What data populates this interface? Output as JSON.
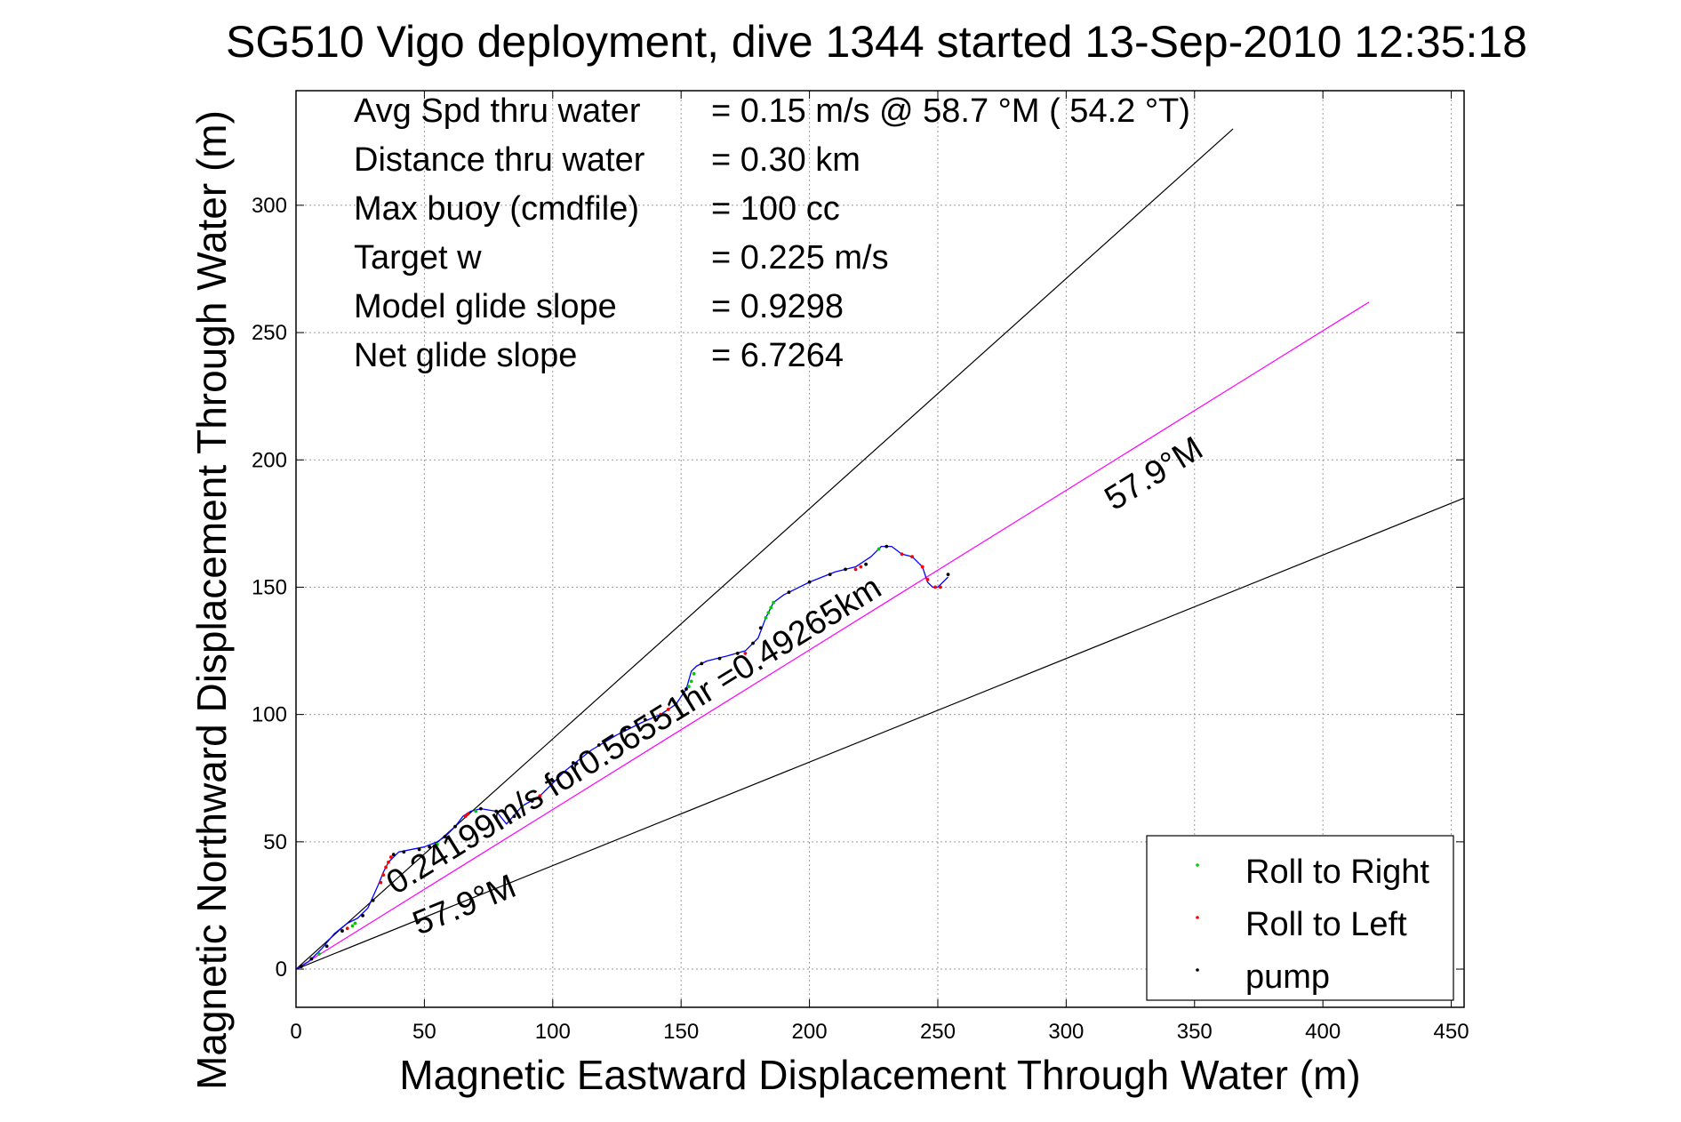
{
  "chart_data": {
    "type": "scatter",
    "title": "SG510 Vigo deployment, dive 1344 started 13-Sep-2010 12:35:18",
    "xlabel": "Magnetic Eastward Displacement Through Water (m)",
    "ylabel": "Magnetic Northward Displacement Through Water (m)",
    "xlim": [
      0,
      455
    ],
    "ylim": [
      -15,
      345
    ],
    "xticks": [
      0,
      50,
      100,
      150,
      200,
      250,
      300,
      350,
      400,
      450
    ],
    "yticks": [
      0,
      50,
      100,
      150,
      200,
      250,
      300
    ],
    "grid": true,
    "legend_position": "bottom-right",
    "stats": [
      {
        "label": "Avg Spd thru water",
        "value": "=  0.15 m/s @  58.7 °M ( 54.2 °T)"
      },
      {
        "label": "Distance thru water",
        "value": "=  0.30 km"
      },
      {
        "label": "Max buoy (cmdfile)",
        "value": "= 100 cc"
      },
      {
        "label": "Target w",
        "value": "= 0.225 m/s"
      },
      {
        "label": "Model glide slope",
        "value": "= 0.9298"
      },
      {
        "label": "Net glide slope",
        "value": "= 6.7264"
      }
    ],
    "annotations": {
      "speed": "0.24199m/s for0.56551hr =0.49265km",
      "heading_upper": "57.9°M",
      "heading_lower": "57.9°M"
    },
    "guide_lines": [
      {
        "name": "upper-bound",
        "x": [
          0,
          365
        ],
        "y": [
          0,
          330
        ],
        "color": "#000000"
      },
      {
        "name": "lower-bound",
        "x": [
          0,
          455
        ],
        "y": [
          0,
          185
        ],
        "color": "#000000"
      },
      {
        "name": "mean-heading",
        "x": [
          0,
          418
        ],
        "y": [
          0,
          262
        ],
        "color": "#ff00ff"
      }
    ],
    "track": {
      "x": [
        0,
        5,
        10,
        15,
        20,
        24,
        28,
        32,
        34,
        36,
        38,
        40,
        45,
        50,
        55,
        58,
        62,
        65,
        68,
        72,
        78,
        82,
        88,
        95,
        105,
        115,
        125,
        135,
        142,
        148,
        152,
        154,
        156,
        160,
        168,
        175,
        180,
        183,
        186,
        190,
        200,
        210,
        218,
        224,
        228,
        232,
        236,
        240,
        244,
        246,
        248,
        250,
        252,
        254
      ],
      "y": [
        0,
        3,
        8,
        14,
        18,
        20,
        24,
        33,
        38,
        42,
        44,
        46,
        47,
        48,
        50,
        52,
        56,
        60,
        62,
        63,
        62,
        57,
        64,
        68,
        78,
        86,
        92,
        97,
        100,
        104,
        110,
        117,
        119,
        121,
        123,
        125,
        130,
        138,
        144,
        147,
        152,
        156,
        158,
        162,
        166,
        166,
        163,
        162,
        158,
        152,
        150,
        150,
        152,
        154
      ],
      "color": "#0000ff"
    },
    "series": [
      {
        "name": "Roll to Right",
        "color": "#00cc00",
        "x": [
          9,
          22,
          23,
          55,
          70,
          88,
          153,
          154,
          155,
          183,
          184,
          185,
          186,
          227
        ],
        "y": [
          6,
          17,
          18,
          49,
          62,
          64,
          111,
          113,
          116,
          138,
          140,
          142,
          144,
          165
        ]
      },
      {
        "name": "Roll to Left",
        "color": "#ff0000",
        "x": [
          20,
          33,
          34,
          35,
          36,
          37,
          66,
          67,
          95,
          140,
          142,
          145,
          175,
          218,
          220,
          236,
          240,
          244,
          246,
          249,
          251
        ],
        "y": [
          16,
          34,
          37,
          40,
          42,
          44,
          60,
          61,
          68,
          98,
          100,
          102,
          124,
          157,
          158,
          163,
          162,
          158,
          153,
          150,
          150
        ]
      },
      {
        "name": "pump",
        "color": "#000000",
        "x": [
          2,
          6,
          12,
          18,
          26,
          30,
          38,
          42,
          48,
          52,
          58,
          62,
          72,
          78,
          85,
          92,
          100,
          108,
          118,
          128,
          136,
          148,
          152,
          158,
          165,
          172,
          178,
          181,
          192,
          200,
          208,
          214,
          222,
          230,
          254
        ],
        "y": [
          1,
          4,
          9,
          15,
          21,
          27,
          45,
          46,
          47,
          48,
          52,
          56,
          63,
          62,
          60,
          66,
          74,
          81,
          88,
          94,
          98,
          104,
          110,
          120,
          122,
          124,
          128,
          134,
          148,
          152,
          155,
          157,
          159,
          166,
          155
        ]
      }
    ]
  }
}
